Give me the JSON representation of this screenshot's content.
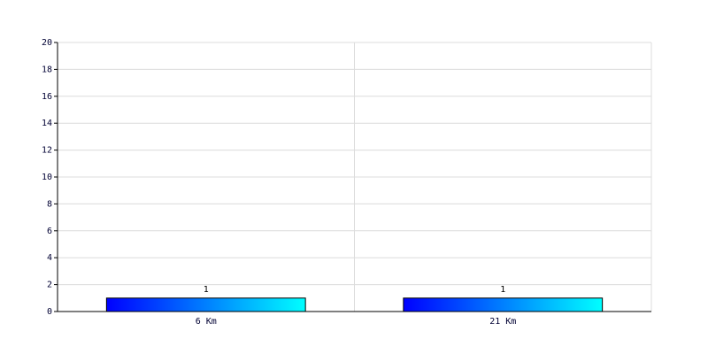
{
  "chart_data": {
    "type": "bar",
    "categories": [
      "6 Km",
      "21 Km"
    ],
    "values": [
      1,
      1
    ],
    "gradient": [
      "#0000ff",
      "#00ffff"
    ],
    "ylim": [
      0,
      20
    ],
    "yticks": [
      0,
      2,
      4,
      6,
      8,
      10,
      12,
      14,
      16,
      18,
      20
    ],
    "grid": true
  }
}
